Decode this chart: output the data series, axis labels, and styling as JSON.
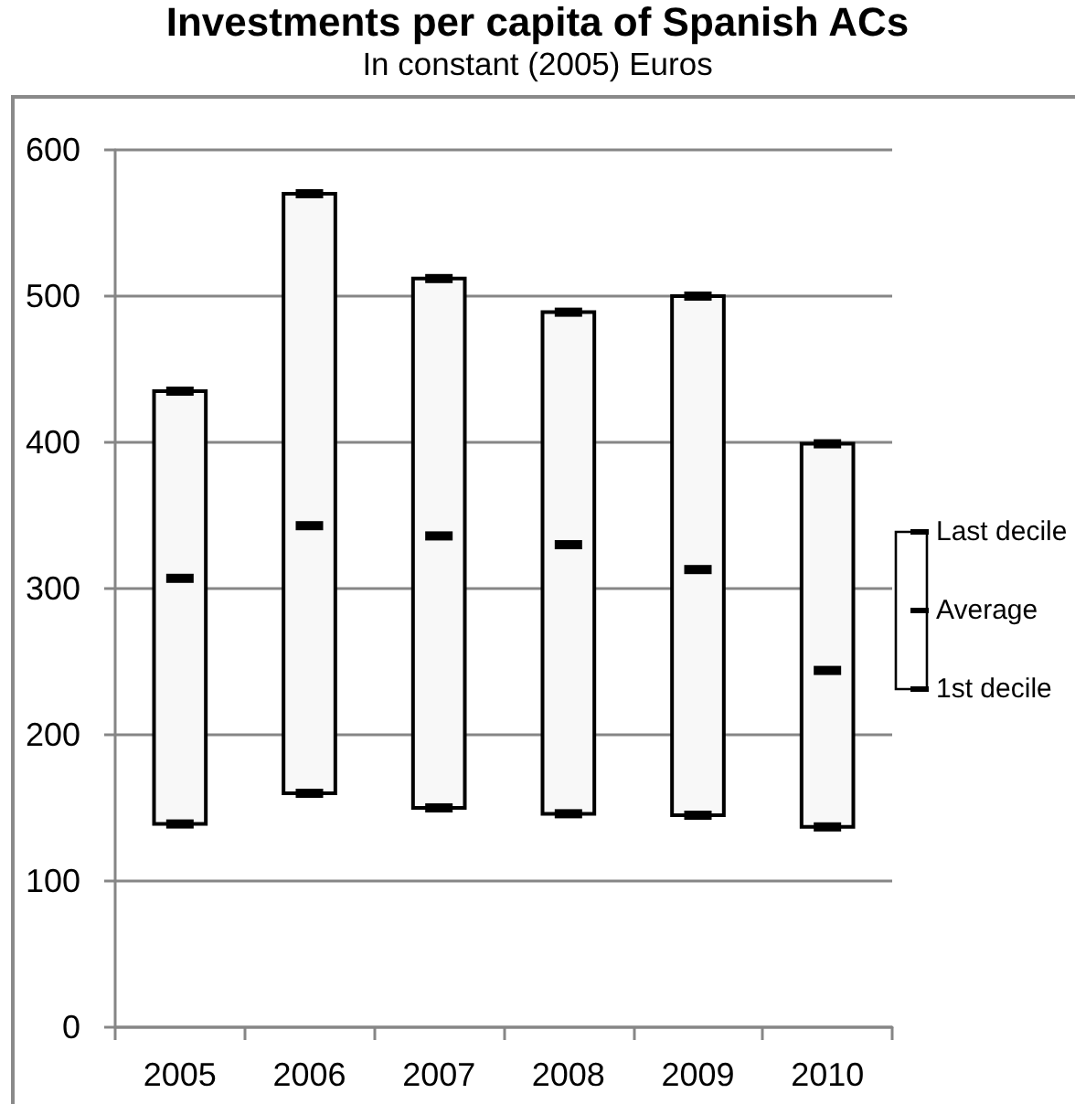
{
  "chart_data": {
    "type": "bar",
    "title": "Investments per capita of Spanish ACs",
    "subtitle": "In constant (2005) Euros",
    "categories": [
      "2005",
      "2006",
      "2007",
      "2008",
      "2009",
      "2010"
    ],
    "series": [
      {
        "base": [
          139,
          160,
          150,
          146,
          145,
          137
        ],
        "values": [
          296,
          410,
          362,
          343,
          355,
          262
        ],
        "color": "#f8f8f8"
      },
      {
        "type": "scatter",
        "name": "Last decile",
        "values": [
          435,
          570,
          512,
          489,
          500,
          399
        ],
        "color": "#000000"
      },
      {
        "type": "scatter",
        "name": "Average",
        "values": [
          307,
          343,
          336,
          330,
          313,
          244
        ],
        "color": "#000000"
      },
      {
        "type": "scatter",
        "name": "1st decile",
        "values": [
          139,
          160,
          150,
          146,
          145,
          137
        ],
        "color": "#000000"
      }
    ],
    "ylim": [
      0,
      600
    ],
    "yticks": [
      0,
      100,
      200,
      300,
      400,
      500,
      600
    ],
    "grid": "y",
    "legend": "right"
  }
}
